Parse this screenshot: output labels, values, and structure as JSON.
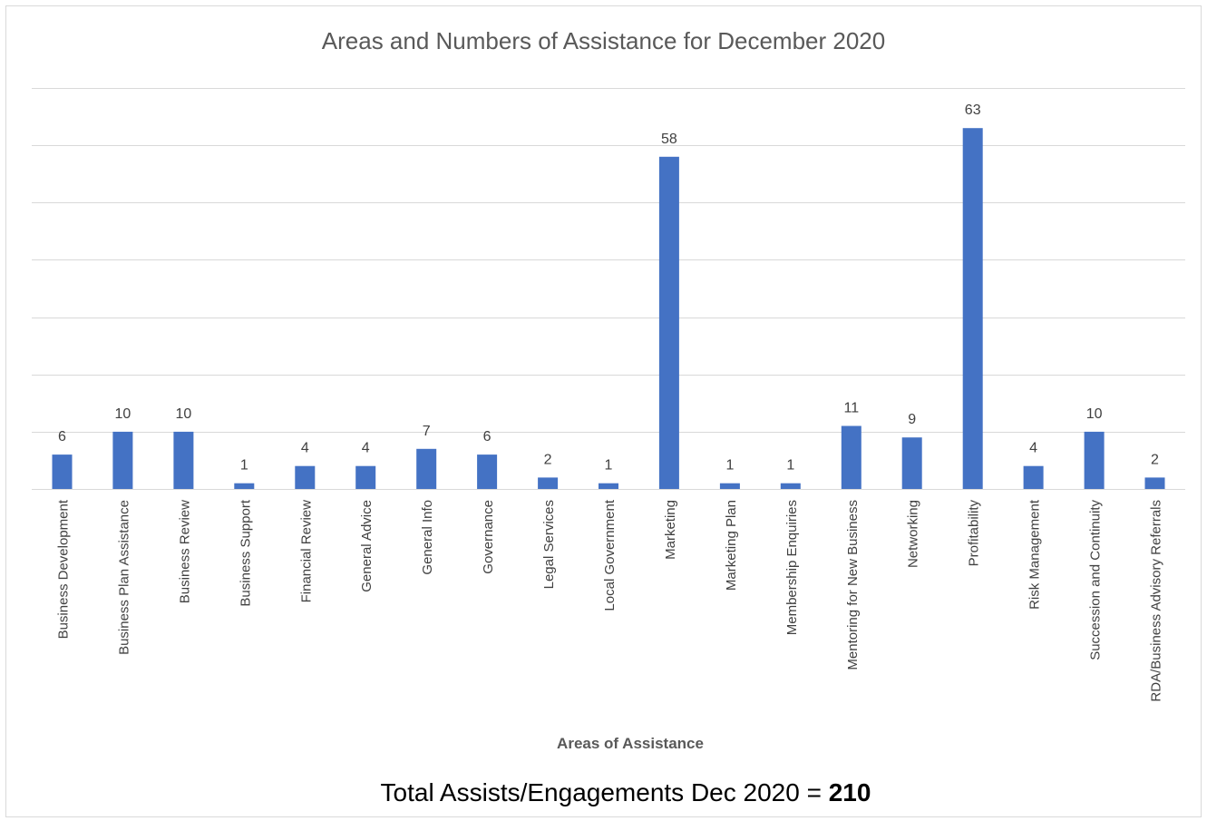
{
  "chart_data": {
    "type": "bar",
    "title": "Areas and Numbers of Assistance for December 2020",
    "xlabel": "Areas of Assistance",
    "ylabel": "",
    "ylim": [
      0,
      70
    ],
    "grid": true,
    "bar_color": "#4472c4",
    "categories": [
      "Business Development",
      "Business Plan Assistance",
      "Business Review",
      "Business Support",
      "Financial Review",
      "General Advice",
      "General Info",
      "Governance",
      "Legal Services",
      "Local Government",
      "Marketing",
      "Marketing Plan",
      "Membership Enquiries",
      "Mentoring for New Business",
      "Networking",
      "Profitability",
      "Risk Management",
      "Succession and Continuity",
      "RDA/Business Advisory Referrals"
    ],
    "values": [
      6,
      10,
      10,
      1,
      4,
      4,
      7,
      6,
      2,
      1,
      58,
      1,
      1,
      11,
      9,
      63,
      4,
      10,
      2
    ]
  },
  "footer": {
    "label": "Total Assists/Engagements Dec 2020 = ",
    "value": "210"
  }
}
